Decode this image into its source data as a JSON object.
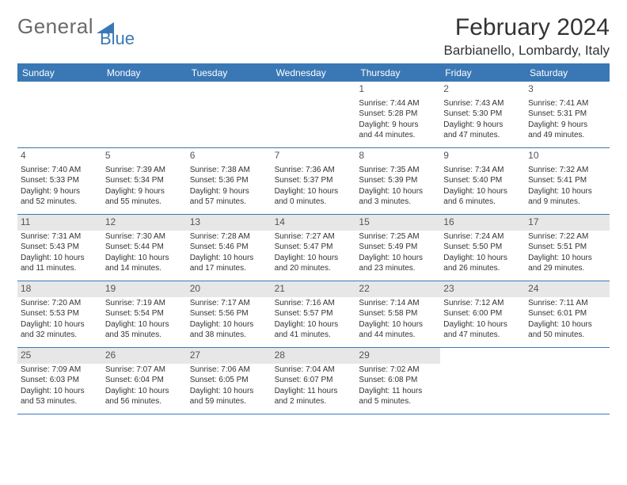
{
  "header": {
    "logo_general": "General",
    "logo_blue": "Blue",
    "logo_color_gray": "#6a6a6a",
    "logo_color_blue": "#3a78b5",
    "month_title": "February 2024",
    "location": "Barbianello, Lombardy, Italy"
  },
  "calendar": {
    "header_bg": "#3a78b5",
    "header_fg": "#ffffff",
    "rule_color": "#3a78b5",
    "shaded_bg": "#e7e7e7",
    "text_color": "#333333",
    "font_size_body": 10,
    "font_size_daynum": 12,
    "days": [
      "Sunday",
      "Monday",
      "Tuesday",
      "Wednesday",
      "Thursday",
      "Friday",
      "Saturday"
    ],
    "weeks": [
      [
        {
          "empty": true
        },
        {
          "empty": true
        },
        {
          "empty": true
        },
        {
          "empty": true
        },
        {
          "day": "1",
          "sunrise": "Sunrise: 7:44 AM",
          "sunset": "Sunset: 5:28 PM",
          "dl1": "Daylight: 9 hours",
          "dl2": "and 44 minutes."
        },
        {
          "day": "2",
          "sunrise": "Sunrise: 7:43 AM",
          "sunset": "Sunset: 5:30 PM",
          "dl1": "Daylight: 9 hours",
          "dl2": "and 47 minutes."
        },
        {
          "day": "3",
          "sunrise": "Sunrise: 7:41 AM",
          "sunset": "Sunset: 5:31 PM",
          "dl1": "Daylight: 9 hours",
          "dl2": "and 49 minutes."
        }
      ],
      [
        {
          "day": "4",
          "sunrise": "Sunrise: 7:40 AM",
          "sunset": "Sunset: 5:33 PM",
          "dl1": "Daylight: 9 hours",
          "dl2": "and 52 minutes."
        },
        {
          "day": "5",
          "sunrise": "Sunrise: 7:39 AM",
          "sunset": "Sunset: 5:34 PM",
          "dl1": "Daylight: 9 hours",
          "dl2": "and 55 minutes."
        },
        {
          "day": "6",
          "sunrise": "Sunrise: 7:38 AM",
          "sunset": "Sunset: 5:36 PM",
          "dl1": "Daylight: 9 hours",
          "dl2": "and 57 minutes."
        },
        {
          "day": "7",
          "sunrise": "Sunrise: 7:36 AM",
          "sunset": "Sunset: 5:37 PM",
          "dl1": "Daylight: 10 hours",
          "dl2": "and 0 minutes."
        },
        {
          "day": "8",
          "sunrise": "Sunrise: 7:35 AM",
          "sunset": "Sunset: 5:39 PM",
          "dl1": "Daylight: 10 hours",
          "dl2": "and 3 minutes."
        },
        {
          "day": "9",
          "sunrise": "Sunrise: 7:34 AM",
          "sunset": "Sunset: 5:40 PM",
          "dl1": "Daylight: 10 hours",
          "dl2": "and 6 minutes."
        },
        {
          "day": "10",
          "sunrise": "Sunrise: 7:32 AM",
          "sunset": "Sunset: 5:41 PM",
          "dl1": "Daylight: 10 hours",
          "dl2": "and 9 minutes."
        }
      ],
      [
        {
          "day": "11",
          "shaded": true,
          "sunrise": "Sunrise: 7:31 AM",
          "sunset": "Sunset: 5:43 PM",
          "dl1": "Daylight: 10 hours",
          "dl2": "and 11 minutes."
        },
        {
          "day": "12",
          "shaded": true,
          "sunrise": "Sunrise: 7:30 AM",
          "sunset": "Sunset: 5:44 PM",
          "dl1": "Daylight: 10 hours",
          "dl2": "and 14 minutes."
        },
        {
          "day": "13",
          "shaded": true,
          "sunrise": "Sunrise: 7:28 AM",
          "sunset": "Sunset: 5:46 PM",
          "dl1": "Daylight: 10 hours",
          "dl2": "and 17 minutes."
        },
        {
          "day": "14",
          "shaded": true,
          "sunrise": "Sunrise: 7:27 AM",
          "sunset": "Sunset: 5:47 PM",
          "dl1": "Daylight: 10 hours",
          "dl2": "and 20 minutes."
        },
        {
          "day": "15",
          "shaded": true,
          "sunrise": "Sunrise: 7:25 AM",
          "sunset": "Sunset: 5:49 PM",
          "dl1": "Daylight: 10 hours",
          "dl2": "and 23 minutes."
        },
        {
          "day": "16",
          "shaded": true,
          "sunrise": "Sunrise: 7:24 AM",
          "sunset": "Sunset: 5:50 PM",
          "dl1": "Daylight: 10 hours",
          "dl2": "and 26 minutes."
        },
        {
          "day": "17",
          "shaded": true,
          "sunrise": "Sunrise: 7:22 AM",
          "sunset": "Sunset: 5:51 PM",
          "dl1": "Daylight: 10 hours",
          "dl2": "and 29 minutes."
        }
      ],
      [
        {
          "day": "18",
          "shaded": true,
          "sunrise": "Sunrise: 7:20 AM",
          "sunset": "Sunset: 5:53 PM",
          "dl1": "Daylight: 10 hours",
          "dl2": "and 32 minutes."
        },
        {
          "day": "19",
          "shaded": true,
          "sunrise": "Sunrise: 7:19 AM",
          "sunset": "Sunset: 5:54 PM",
          "dl1": "Daylight: 10 hours",
          "dl2": "and 35 minutes."
        },
        {
          "day": "20",
          "shaded": true,
          "sunrise": "Sunrise: 7:17 AM",
          "sunset": "Sunset: 5:56 PM",
          "dl1": "Daylight: 10 hours",
          "dl2": "and 38 minutes."
        },
        {
          "day": "21",
          "shaded": true,
          "sunrise": "Sunrise: 7:16 AM",
          "sunset": "Sunset: 5:57 PM",
          "dl1": "Daylight: 10 hours",
          "dl2": "and 41 minutes."
        },
        {
          "day": "22",
          "shaded": true,
          "sunrise": "Sunrise: 7:14 AM",
          "sunset": "Sunset: 5:58 PM",
          "dl1": "Daylight: 10 hours",
          "dl2": "and 44 minutes."
        },
        {
          "day": "23",
          "shaded": true,
          "sunrise": "Sunrise: 7:12 AM",
          "sunset": "Sunset: 6:00 PM",
          "dl1": "Daylight: 10 hours",
          "dl2": "and 47 minutes."
        },
        {
          "day": "24",
          "shaded": true,
          "sunrise": "Sunrise: 7:11 AM",
          "sunset": "Sunset: 6:01 PM",
          "dl1": "Daylight: 10 hours",
          "dl2": "and 50 minutes."
        }
      ],
      [
        {
          "day": "25",
          "shaded": true,
          "sunrise": "Sunrise: 7:09 AM",
          "sunset": "Sunset: 6:03 PM",
          "dl1": "Daylight: 10 hours",
          "dl2": "and 53 minutes."
        },
        {
          "day": "26",
          "shaded": true,
          "sunrise": "Sunrise: 7:07 AM",
          "sunset": "Sunset: 6:04 PM",
          "dl1": "Daylight: 10 hours",
          "dl2": "and 56 minutes."
        },
        {
          "day": "27",
          "shaded": true,
          "sunrise": "Sunrise: 7:06 AM",
          "sunset": "Sunset: 6:05 PM",
          "dl1": "Daylight: 10 hours",
          "dl2": "and 59 minutes."
        },
        {
          "day": "28",
          "shaded": true,
          "sunrise": "Sunrise: 7:04 AM",
          "sunset": "Sunset: 6:07 PM",
          "dl1": "Daylight: 11 hours",
          "dl2": "and 2 minutes."
        },
        {
          "day": "29",
          "shaded": true,
          "sunrise": "Sunrise: 7:02 AM",
          "sunset": "Sunset: 6:08 PM",
          "dl1": "Daylight: 11 hours",
          "dl2": "and 5 minutes."
        },
        {
          "empty": true
        },
        {
          "empty": true
        }
      ]
    ]
  }
}
